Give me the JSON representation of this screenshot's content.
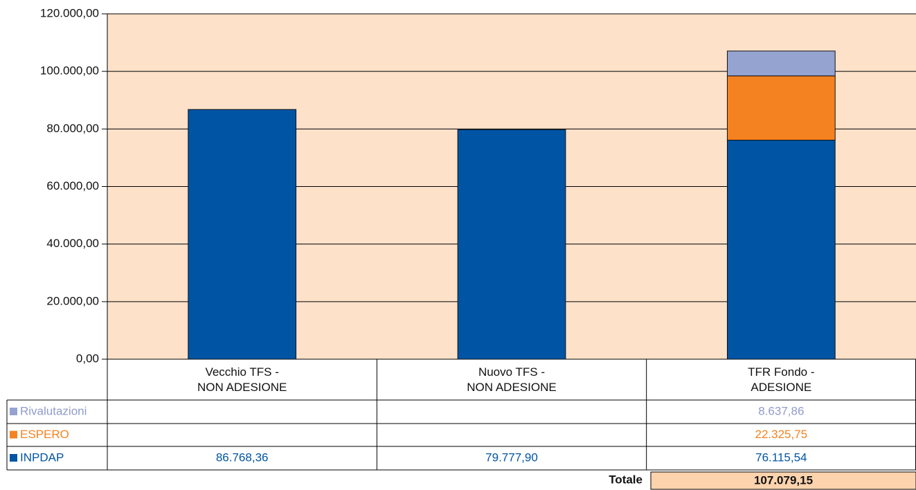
{
  "chart_data": {
    "type": "stacked_bar",
    "categories": [
      "Vecchio TFS -\nNON ADESIONE",
      "Nuovo TFS -\nNON ADESIONE",
      "TFR Fondo -\nADESIONE"
    ],
    "series": [
      {
        "name": "INPDAP",
        "color": "#0054a4",
        "label_color": "#0054a4",
        "values": [
          86768.36,
          79777.9,
          76115.54
        ],
        "value_labels": [
          "86.768,36",
          "79.777,90",
          "76.115,54"
        ]
      },
      {
        "name": "ESPERO",
        "color": "#f58220",
        "label_color": "#f58220",
        "values": [
          null,
          null,
          22325.75
        ],
        "value_labels": [
          null,
          null,
          "22.325,75"
        ]
      },
      {
        "name": "Rivalutazioni",
        "color": "#94a3d0",
        "label_color": "#8f9bcc",
        "values": [
          null,
          null,
          8637.86
        ],
        "value_labels": [
          null,
          null,
          "8.637,86"
        ]
      }
    ],
    "ylim": [
      0,
      120000
    ],
    "yticks": [
      {
        "value": 0,
        "label": "0,00"
      },
      {
        "value": 20000,
        "label": "20.000,00"
      },
      {
        "value": 40000,
        "label": "40.000,00"
      },
      {
        "value": 60000,
        "label": "60.000,00"
      },
      {
        "value": 80000,
        "label": "80.000,00"
      },
      {
        "value": 100000,
        "label": "100.000,00"
      },
      {
        "value": 120000,
        "label": "120.000,00"
      }
    ],
    "grid": true,
    "plot_background": "#fde1c9",
    "total_label": "Totale",
    "total": 107079.15,
    "total_value_label": "107.079,15",
    "total_background": "#fdd3ad"
  }
}
